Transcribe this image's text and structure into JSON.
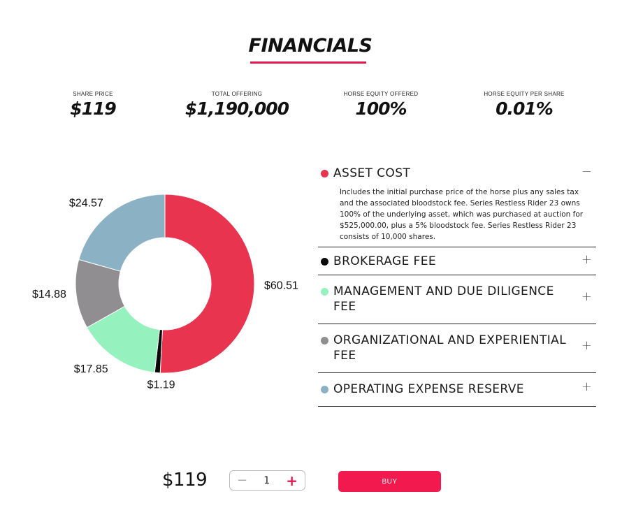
{
  "page": {
    "title": "FINANCIALS",
    "accent_color": "#e0184d"
  },
  "stats": [
    {
      "label": "SHARE PRICE",
      "value": "$119"
    },
    {
      "label": "TOTAL OFFERING",
      "value": "$1,190,000"
    },
    {
      "label": "HORSE EQUITY OFFERED",
      "value": "100%"
    },
    {
      "label": "HORSE EQUITY PER SHARE",
      "value": "0.01%"
    }
  ],
  "chart_data": {
    "type": "pie",
    "variant": "donut",
    "title": "",
    "start_angle_deg": 0,
    "direction": "clockwise",
    "slices": [
      {
        "label": "ASSET COST",
        "value": 60.51,
        "display": "$60.51",
        "color": "#e8344f"
      },
      {
        "label": "BROKERAGE FEE",
        "value": 1.19,
        "display": "$1.19",
        "color": "#0a0a0a"
      },
      {
        "label": "MANAGEMENT AND DUE DILIGENCE FEE",
        "value": 17.85,
        "display": "$17.85",
        "color": "#95f2be"
      },
      {
        "label": "ORGANIZATIONAL AND EXPERIENTIAL FEE",
        "value": 14.88,
        "display": "$14.88",
        "color": "#908e91"
      },
      {
        "label": "OPERATING EXPENSE RESERVE",
        "value": 24.57,
        "display": "$24.57",
        "color": "#8bb1c4"
      }
    ]
  },
  "legend": {
    "items": [
      {
        "label": "ASSET COST",
        "color": "#e8344f",
        "toggle": "−",
        "expanded": true,
        "description": "Includes the initial purchase price of the horse plus any sales tax and the associated bloodstock fee. Series Restless Rider 23 owns 100% of the underlying asset, which was purchased at auction for $525,000.00, plus a 5% bloodstock fee. Series Restless Rider 23 consists of 10,000 shares."
      },
      {
        "label": "BROKERAGE FEE",
        "color": "#0a0a0a",
        "toggle": "+",
        "expanded": false
      },
      {
        "label": "MANAGEMENT AND DUE DILIGENCE FEE",
        "color": "#95f2be",
        "toggle": "+",
        "expanded": false
      },
      {
        "label": "ORGANIZATIONAL AND EXPERIENTIAL FEE",
        "color": "#908e91",
        "toggle": "+",
        "expanded": false
      },
      {
        "label": "OPERATING EXPENSE RESERVE",
        "color": "#8bb1c4",
        "toggle": "+",
        "expanded": false
      }
    ]
  },
  "purchase": {
    "price": "$119",
    "quantity": "1",
    "minus_label": "−",
    "plus_label": "+",
    "buy_label": "BUY",
    "buy_color": "#f2194f"
  }
}
